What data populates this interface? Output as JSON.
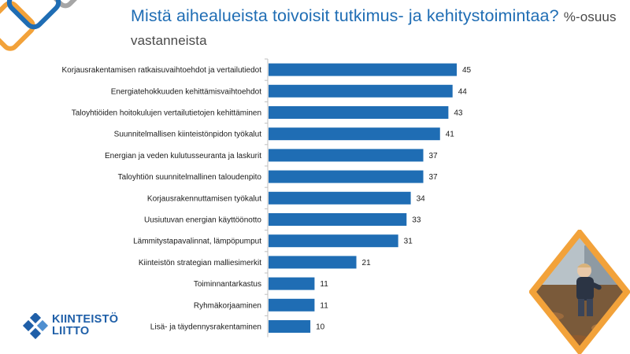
{
  "title": {
    "main": "Mistä aihealueista toivoisit tutkimus- ja kehitystoimintaa?",
    "subtitle": "%-osuus vastanneista"
  },
  "logo": {
    "line1": "KIINTEISTÖ",
    "line2": "LIITTO"
  },
  "colors": {
    "accent": "#1f6db4",
    "bar": "#1f6db4",
    "orange": "#f2a23a",
    "gray": "#a6a6a6"
  },
  "chart_data": {
    "type": "bar",
    "orientation": "horizontal",
    "categories": [
      "Korjausrakentamisen ratkaisuvaihtoehdot ja vertailutiedot",
      "Energiatehokkuuden kehittämisvaihtoehdot",
      "Taloyhtiöiden hoitokulujen vertailutietojen kehittäminen",
      "Suunnitelmallisen kiinteistönpidon työkalut",
      "Energian ja veden kulutusseuranta ja laskurit",
      "Taloyhtiön suunnitelmallinen taloudenpito",
      "Korjausrakennuttamisen työkalut",
      "Uusiutuvan energian käyttöönotto",
      "Lämmitystapavalinnat, lämpöpumput",
      "Kiinteistön strategian malliesimerkit",
      "Toiminnantarkastus",
      "Ryhmäkorjaaminen",
      "Lisä- ja täydennysrakentaminen"
    ],
    "values": [
      45,
      44,
      43,
      41,
      37,
      37,
      34,
      33,
      31,
      21,
      11,
      11,
      10
    ],
    "xlim": [
      0,
      50
    ],
    "grid": false,
    "legend": "none",
    "data_labels": true
  }
}
